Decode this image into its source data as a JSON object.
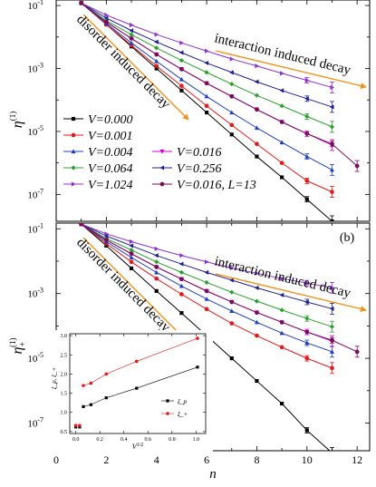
{
  "chart_data": [
    {
      "type": "line",
      "panel_label": "",
      "ylabel": "η^(1)",
      "ylabel_main": "η",
      "ylabel_sup": "(1)",
      "ylabel_sub": "",
      "yscale": "log",
      "ylim": [
        1.4e-08,
        0.15
      ],
      "xlim": [
        0,
        12.5
      ],
      "yticks": [
        0.1,
        0.001,
        1e-05,
        1e-07
      ],
      "ytick_mant": [
        "10",
        "10",
        "10",
        "10"
      ],
      "ytick_exp": [
        "-1",
        "-3",
        "-5",
        "-7"
      ],
      "annotations": [
        "disorder induced decay",
        "interaction induced decay"
      ],
      "series": [
        {
          "name": "V=0.000",
          "color": "#000000",
          "marker": "square",
          "x": [
            1,
            2,
            3,
            4,
            5,
            6,
            7,
            8,
            9,
            10,
            11
          ],
          "y": [
            0.12,
            0.025,
            0.005,
            0.001,
            0.0002,
            4e-05,
            8e-06,
            1.6e-06,
            3.5e-07,
            7e-08,
            1.4e-08
          ]
        },
        {
          "name": "V=0.001",
          "color": "#e31a1c",
          "marker": "circle",
          "x": [
            1,
            2,
            3,
            4,
            5,
            6,
            7,
            8,
            9,
            10,
            11
          ],
          "y": [
            0.12,
            0.025,
            0.0055,
            0.0012,
            0.00028,
            6.5e-05,
            1.6e-05,
            4e-06,
            1e-06,
            2.7e-07,
            1.2e-07
          ]
        },
        {
          "name": "V=0.004",
          "color": "#1f3fbf",
          "marker": "triangle-up",
          "x": [
            1,
            2,
            3,
            4,
            5,
            6,
            7,
            8,
            9,
            10,
            11
          ],
          "y": [
            0.12,
            0.027,
            0.0065,
            0.0017,
            0.00045,
            0.00013,
            4e-05,
            1.3e-05,
            4.5e-06,
            1.6e-06,
            6e-07
          ]
        },
        {
          "name": "V=0.016",
          "color": "#d400d4",
          "marker": "triangle-down",
          "x": [
            1,
            2,
            3,
            4,
            5,
            6,
            7,
            8,
            9,
            10,
            11
          ],
          "y": [
            0.12,
            0.03,
            0.009,
            0.0028,
            0.00095,
            0.00034,
            0.00013,
            5e-05,
            2e-05,
            8.5e-06,
            3.7e-06
          ]
        },
        {
          "name": "V=0.064",
          "color": "#2ca02c",
          "marker": "diamond",
          "x": [
            1,
            2,
            3,
            4,
            5,
            6,
            7,
            8,
            9,
            10,
            11
          ],
          "y": [
            0.12,
            0.033,
            0.012,
            0.0045,
            0.0018,
            0.00075,
            0.00032,
            0.00014,
            6.5e-05,
            3e-05,
            1.4e-05
          ]
        },
        {
          "name": "V=0.256",
          "color": "#1f1f8f",
          "marker": "triangle-left",
          "x": [
            1,
            2,
            3,
            4,
            5,
            6,
            7,
            8,
            9,
            10,
            11
          ],
          "y": [
            0.12,
            0.04,
            0.016,
            0.007,
            0.0032,
            0.0015,
            0.00075,
            0.00038,
            0.0002,
            0.00011,
            6e-05
          ]
        },
        {
          "name": "V=1.024",
          "color": "#8f2fd0",
          "marker": "triangle-right",
          "x": [
            1,
            2,
            3,
            4,
            5,
            6,
            7,
            8,
            9,
            10,
            11
          ],
          "y": [
            0.12,
            0.05,
            0.024,
            0.012,
            0.0065,
            0.0036,
            0.002,
            0.0012,
            0.0007,
            0.00042,
            0.00025
          ]
        },
        {
          "name": "V=0.016, L=13",
          "color": "#7a0a5a",
          "marker": "hexagon",
          "x": [
            1,
            2,
            3,
            4,
            5,
            6,
            7,
            8,
            9,
            10,
            11,
            12
          ],
          "y": [
            0.12,
            0.03,
            0.009,
            0.0028,
            0.00095,
            0.00034,
            0.00013,
            5e-05,
            2e-05,
            8.5e-06,
            4e-06,
            8e-07
          ]
        }
      ]
    },
    {
      "type": "line",
      "panel_label": "(b)",
      "ylabel": "η₊^(1)",
      "ylabel_main": "η",
      "ylabel_sup": "(1)",
      "ylabel_sub": "+",
      "xlabel": "n",
      "yscale": "log",
      "ylim": [
        1.4e-08,
        0.15
      ],
      "xlim": [
        0,
        12.5
      ],
      "xticks": [
        0,
        2,
        4,
        6,
        8,
        10,
        12
      ],
      "yticks": [
        0.1,
        0.001,
        1e-05,
        1e-07
      ],
      "ytick_mant": [
        "10",
        "10",
        "10",
        "10"
      ],
      "ytick_exp": [
        "-1",
        "-3",
        "-5",
        "-7"
      ],
      "annotations": [
        "disorder induced decay",
        "interaction induced decay"
      ],
      "series": [
        {
          "name": "V=0.000",
          "color": "#000000",
          "marker": "square",
          "x": [
            1,
            2,
            3,
            4,
            5,
            6,
            7,
            8,
            9,
            10,
            11
          ],
          "y": [
            0.14,
            0.03,
            0.006,
            0.0012,
            0.00025,
            5e-05,
            1e-05,
            2e-06,
            4e-07,
            6e-08,
            1.2e-08
          ]
        },
        {
          "name": "V=0.001",
          "color": "#e31a1c",
          "marker": "circle",
          "x": [
            1,
            2,
            3,
            4,
            5,
            6,
            7,
            8,
            9,
            10,
            11
          ],
          "y": [
            0.14,
            0.035,
            0.0095,
            0.0029,
            0.00095,
            0.00033,
            0.00012,
            5e-05,
            2.2e-05,
            1e-05,
            5e-06
          ]
        },
        {
          "name": "V=0.004",
          "color": "#1f3fbf",
          "marker": "triangle-up",
          "x": [
            1,
            2,
            3,
            4,
            5,
            6,
            7,
            8,
            9,
            10,
            11
          ],
          "y": [
            0.14,
            0.04,
            0.013,
            0.0045,
            0.0017,
            0.00068,
            0.00029,
            0.00013,
            6e-05,
            3e-05,
            1.6e-05
          ]
        },
        {
          "name": "V=0.016",
          "color": "#d400d4",
          "marker": "triangle-down",
          "x": [
            1,
            2,
            3,
            4,
            5,
            6,
            7,
            8,
            9,
            10,
            11
          ],
          "y": [
            0.14,
            0.045,
            0.017,
            0.0066,
            0.0028,
            0.0012,
            0.00055,
            0.00026,
            0.00013,
            6.5e-05,
            3.4e-05
          ]
        },
        {
          "name": "V=0.064",
          "color": "#2ca02c",
          "marker": "diamond",
          "x": [
            1,
            2,
            3,
            4,
            5,
            6,
            7,
            8,
            9,
            10,
            11
          ],
          "y": [
            0.14,
            0.05,
            0.022,
            0.0095,
            0.0045,
            0.0022,
            0.0011,
            0.00058,
            0.00031,
            0.00017,
            9.5e-05
          ]
        },
        {
          "name": "V=0.256",
          "color": "#1f1f8f",
          "marker": "triangle-left",
          "x": [
            1,
            2,
            3,
            4,
            5,
            6,
            7,
            8,
            9,
            10,
            11
          ],
          "y": [
            0.14,
            0.06,
            0.03,
            0.015,
            0.0082,
            0.0045,
            0.0026,
            0.0015,
            0.0009,
            0.00055,
            0.00034
          ]
        },
        {
          "name": "V=1.024",
          "color": "#8f2fd0",
          "marker": "triangle-right",
          "x": [
            1,
            2,
            3,
            4,
            5,
            6,
            7,
            8,
            9,
            10,
            11
          ],
          "y": [
            0.14,
            0.07,
            0.04,
            0.024,
            0.015,
            0.0095,
            0.0062,
            0.0042,
            0.0029,
            0.0021,
            0.0015
          ]
        },
        {
          "name": "V=0.016, L=13",
          "color": "#7a0a5a",
          "marker": "hexagon",
          "x": [
            1,
            2,
            3,
            4,
            5,
            6,
            7,
            8,
            9,
            10,
            11,
            12
          ],
          "y": [
            0.14,
            0.045,
            0.017,
            0.0066,
            0.0028,
            0.0012,
            0.00055,
            0.00026,
            0.00013,
            6.5e-05,
            3.6e-05,
            1.6e-05
          ]
        }
      ]
    },
    {
      "type": "scatter",
      "panel_label": "inset",
      "xlabel": "V^1/2",
      "xlabel_main": "V",
      "xlabel_sup": "1/2",
      "ylabel": "ξ_p, ξ_+",
      "xlim": [
        -0.05,
        1.08
      ],
      "ylim": [
        0.45,
        3.05
      ],
      "xticks": [
        0.0,
        0.2,
        0.4,
        0.6,
        0.8,
        1.0
      ],
      "xtick_labels": [
        "0.0",
        "0.2",
        "0.4",
        "0.6",
        "0.8",
        "1.0"
      ],
      "yticks": [
        0.5,
        1.0,
        1.5,
        2.0,
        2.5,
        3.0
      ],
      "ytick_labels": [
        "0.5",
        "1.0",
        "1.5",
        "2.0",
        "2.5",
        "3.0"
      ],
      "series": [
        {
          "name": "ξ_p",
          "color": "#000000",
          "marker": "square",
          "x": [
            0.0,
            0.032,
            0.063,
            0.126,
            0.253,
            0.506,
            1.012
          ],
          "y": [
            0.62,
            0.62,
            1.15,
            1.2,
            1.38,
            1.63,
            2.18
          ]
        },
        {
          "name": "ξ_+",
          "color": "#e31a1c",
          "marker": "circle",
          "x": [
            0.0,
            0.032,
            0.063,
            0.126,
            0.253,
            0.506,
            1.012
          ],
          "y": [
            0.66,
            0.66,
            1.7,
            1.76,
            2.0,
            2.33,
            2.93
          ]
        }
      ]
    }
  ]
}
